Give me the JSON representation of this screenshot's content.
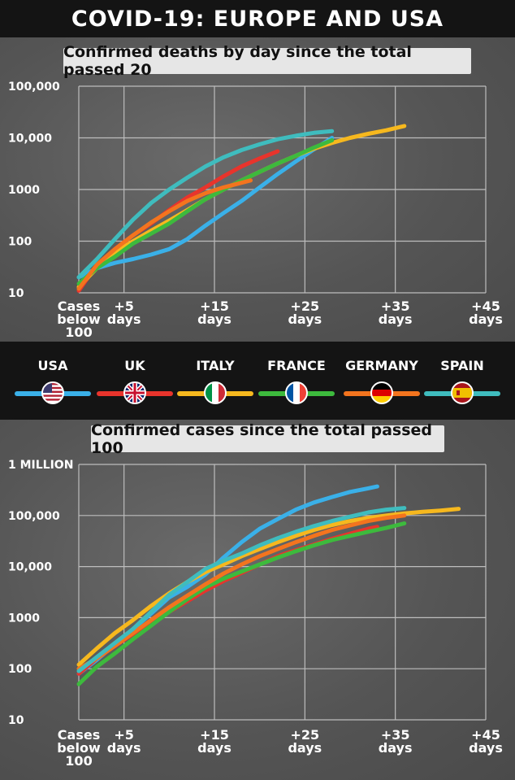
{
  "page_title": "COVID-19:  EUROPE AND USA",
  "legend": [
    {
      "label": "USA",
      "color": "#3ab0e8",
      "flag_icon": "usa-flag-icon"
    },
    {
      "label": "UK",
      "color": "#e8342c",
      "flag_icon": "uk-flag-icon"
    },
    {
      "label": "ITALY",
      "color": "#f6b81e",
      "flag_icon": "italy-flag-icon"
    },
    {
      "label": "FRANCE",
      "color": "#3dba3d",
      "flag_icon": "france-flag-icon"
    },
    {
      "label": "GERMANY",
      "color": "#f3741e",
      "flag_icon": "germany-flag-icon"
    },
    {
      "label": "SPAIN",
      "color": "#3fbcbe",
      "flag_icon": "spain-flag-icon"
    }
  ],
  "chart_data": [
    {
      "type": "line",
      "title": "Confirmed deaths by day since the total passed 20",
      "y_scale": "log",
      "ylim": [
        10,
        100000
      ],
      "xlim": [
        0,
        45
      ],
      "y_ticks": [
        {
          "value": 10,
          "label": "10"
        },
        {
          "value": 100,
          "label": "100"
        },
        {
          "value": 1000,
          "label": "1000"
        },
        {
          "value": 10000,
          "label": "10,000"
        },
        {
          "value": 100000,
          "label": "100,000"
        }
      ],
      "x_ticks": [
        {
          "value": 0,
          "label": "Cases below 100"
        },
        {
          "value": 5,
          "label": "+5 days"
        },
        {
          "value": 15,
          "label": "+15 days"
        },
        {
          "value": 25,
          "label": "+25 days"
        },
        {
          "value": 35,
          "label": "+35 days"
        },
        {
          "value": 45,
          "label": "+45 days"
        }
      ],
      "grid": true,
      "series": [
        {
          "name": "USA",
          "x": [
            0,
            2,
            4,
            6,
            8,
            10,
            12,
            14,
            16,
            18,
            20,
            22,
            24,
            26,
            28
          ],
          "y": [
            20,
            30,
            38,
            45,
            55,
            70,
            110,
            200,
            350,
            600,
            1100,
            2000,
            3500,
            6000,
            10000
          ]
        },
        {
          "name": "UK",
          "x": [
            0,
            2,
            4,
            6,
            8,
            10,
            12,
            14,
            16,
            18,
            20,
            22
          ],
          "y": [
            11,
            35,
            70,
            130,
            220,
            400,
            700,
            1100,
            1800,
            2800,
            4000,
            5500
          ]
        },
        {
          "name": "ITALY",
          "x": [
            0,
            2,
            4,
            6,
            8,
            10,
            12,
            14,
            16,
            18,
            20,
            22,
            24,
            26,
            28,
            30,
            32,
            34,
            36
          ],
          "y": [
            13,
            30,
            60,
            100,
            160,
            250,
            400,
            650,
            1000,
            1500,
            2200,
            3200,
            4500,
            6200,
            8000,
            10000,
            12000,
            14000,
            17000
          ]
        },
        {
          "name": "FRANCE",
          "x": [
            0,
            2,
            4,
            6,
            8,
            10,
            12,
            14,
            16,
            18,
            20,
            22,
            24,
            26,
            28
          ],
          "y": [
            15,
            30,
            50,
            90,
            140,
            220,
            380,
            650,
            1000,
            1500,
            2200,
            3200,
            4500,
            6500,
            9000
          ]
        },
        {
          "name": "GERMANY",
          "x": [
            0,
            2,
            4,
            6,
            8,
            10,
            12,
            14,
            16,
            18,
            19
          ],
          "y": [
            12,
            35,
            70,
            130,
            230,
            380,
            600,
            850,
            1100,
            1350,
            1500
          ]
        },
        {
          "name": "SPAIN",
          "x": [
            0,
            2,
            4,
            6,
            8,
            10,
            12,
            14,
            16,
            18,
            20,
            22,
            24,
            26,
            28
          ],
          "y": [
            20,
            45,
            110,
            260,
            550,
            1000,
            1700,
            2800,
            4200,
            5800,
            7500,
            9400,
            11000,
            12500,
            13500
          ]
        }
      ]
    },
    {
      "type": "line",
      "title": "Confirmed cases since the total passed 100",
      "y_scale": "log",
      "ylim": [
        10,
        1000000
      ],
      "xlim": [
        0,
        45
      ],
      "y_ticks": [
        {
          "value": 10,
          "label": "10"
        },
        {
          "value": 100,
          "label": "100"
        },
        {
          "value": 1000,
          "label": "1000"
        },
        {
          "value": 10000,
          "label": "10,000"
        },
        {
          "value": 100000,
          "label": "100,000"
        },
        {
          "value": 1000000,
          "label": "1 MILLION"
        }
      ],
      "x_ticks": [
        {
          "value": 0,
          "label": "Cases below 100"
        },
        {
          "value": 5,
          "label": "+5 days"
        },
        {
          "value": 15,
          "label": "+15 days"
        },
        {
          "value": 25,
          "label": "+25 days"
        },
        {
          "value": 35,
          "label": "+35 days"
        },
        {
          "value": 45,
          "label": "+45 days"
        }
      ],
      "grid": true,
      "series": [
        {
          "name": "USA",
          "x": [
            0,
            2,
            4,
            6,
            8,
            10,
            12,
            14,
            16,
            18,
            20,
            22,
            24,
            26,
            28,
            30,
            32,
            33
          ],
          "y": [
            80,
            150,
            300,
            600,
            1200,
            2500,
            4000,
            7000,
            15000,
            30000,
            55000,
            85000,
            130000,
            180000,
            230000,
            290000,
            340000,
            370000
          ]
        },
        {
          "name": "UK",
          "x": [
            0,
            2,
            4,
            6,
            8,
            10,
            12,
            14,
            16,
            18,
            20,
            22,
            24,
            26,
            28,
            30,
            32,
            33
          ],
          "y": [
            80,
            160,
            280,
            480,
            850,
            1300,
            2100,
            3400,
            5200,
            7500,
            11000,
            16000,
            21000,
            27000,
            35000,
            44000,
            55000,
            60000
          ]
        },
        {
          "name": "ITALY",
          "x": [
            0,
            2,
            4,
            6,
            8,
            10,
            12,
            14,
            16,
            18,
            20,
            22,
            24,
            26,
            28,
            30,
            32,
            34,
            36,
            38,
            40,
            42
          ],
          "y": [
            120,
            250,
            500,
            900,
            1700,
            3000,
            5000,
            7800,
            11000,
            16000,
            22000,
            30000,
            40000,
            52000,
            65000,
            78000,
            90000,
            100000,
            110000,
            118000,
            125000,
            135000
          ]
        },
        {
          "name": "FRANCE",
          "x": [
            0,
            2,
            4,
            6,
            8,
            10,
            12,
            14,
            16,
            18,
            20,
            22,
            24,
            26,
            28,
            30,
            32,
            34,
            36
          ],
          "y": [
            50,
            110,
            200,
            380,
            700,
            1300,
            2300,
            3900,
            5800,
            8000,
            11000,
            15000,
            20000,
            26000,
            33000,
            40000,
            48000,
            57000,
            70000
          ]
        },
        {
          "name": "GERMANY",
          "x": [
            0,
            2,
            4,
            6,
            8,
            10,
            12,
            14,
            16,
            18,
            20,
            22,
            24,
            26,
            28,
            30,
            32,
            34,
            36
          ],
          "y": [
            100,
            160,
            280,
            500,
            900,
            1600,
            2700,
            4500,
            7300,
            11000,
            16000,
            22000,
            30000,
            40000,
            52000,
            64000,
            78000,
            90000,
            100000
          ]
        },
        {
          "name": "SPAIN",
          "x": [
            0,
            2,
            4,
            6,
            8,
            10,
            12,
            14,
            16,
            18,
            20,
            22,
            24,
            26,
            28,
            30,
            32,
            34,
            36
          ],
          "y": [
            90,
            170,
            320,
            600,
            1300,
            2800,
            5000,
            9000,
            13000,
            18000,
            26000,
            36000,
            48000,
            62000,
            78000,
            95000,
            115000,
            130000,
            140000
          ]
        }
      ]
    }
  ]
}
